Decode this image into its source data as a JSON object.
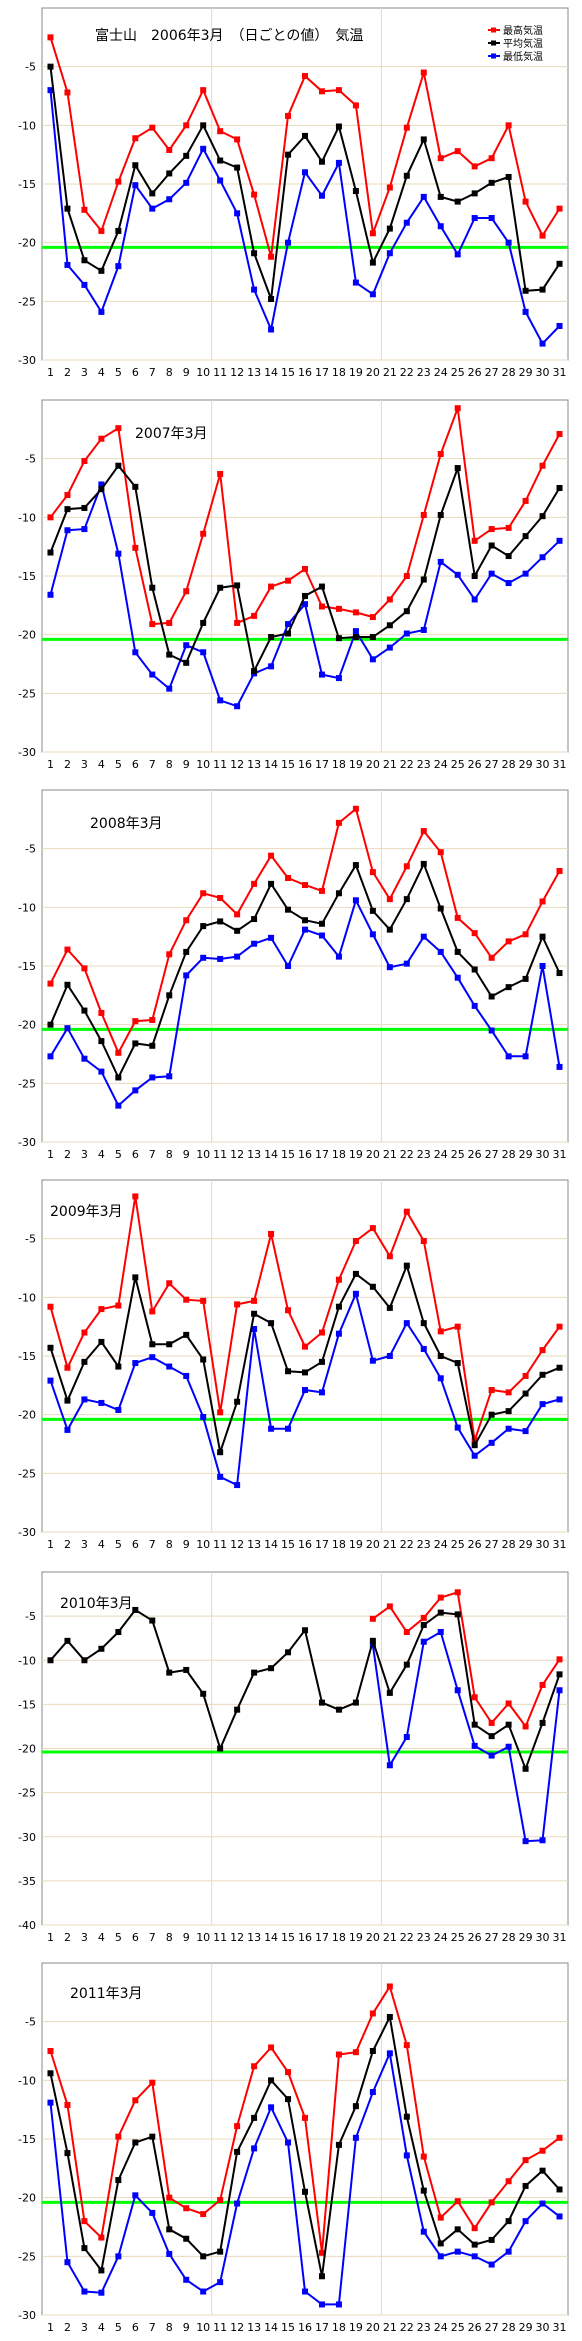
{
  "header": {
    "title": "富士山　2006年3月　（日ごとの値）　気温"
  },
  "legend": [
    {
      "label": "最高気温",
      "color": "#ff0000"
    },
    {
      "label": "平均気温",
      "color": "#000000"
    },
    {
      "label": "最低気温",
      "color": "#0000ff"
    }
  ],
  "colors": {
    "max": "#ff0000",
    "mean": "#000000",
    "min": "#0000ff",
    "reference_line": "#00ff00",
    "grid": "#e8d9bd",
    "background": "#ffffff"
  },
  "chart_data": [
    {
      "type": "line",
      "title": "富士山　2006年3月　（日ごとの値）　気温",
      "x": [
        1,
        2,
        3,
        4,
        5,
        6,
        7,
        8,
        9,
        10,
        11,
        12,
        13,
        14,
        15,
        16,
        17,
        18,
        19,
        20,
        21,
        22,
        23,
        24,
        25,
        26,
        27,
        28,
        29,
        30,
        31
      ],
      "ylim": [
        -30,
        0
      ],
      "yticks": [
        "-5",
        "-10",
        "-15",
        "-20",
        "-25",
        "-30"
      ],
      "reference_line": -20.4,
      "grid": true,
      "series": [
        {
          "name": "最高気温",
          "values": [
            -2.5,
            -7.2,
            -17.2,
            -19.0,
            -14.8,
            -11.1,
            -10.2,
            -12.1,
            -10.0,
            -7.0,
            -10.5,
            -11.2,
            -15.9,
            -21.2,
            -9.2,
            -5.8,
            -7.1,
            -7.0,
            -8.3,
            -19.2,
            -15.3,
            -10.2,
            -5.5,
            -12.8,
            -12.2,
            -13.5,
            -12.8,
            -10.0,
            -16.5,
            -19.4,
            -17.1
          ]
        },
        {
          "name": "平均気温",
          "values": [
            -5.0,
            -17.1,
            -21.5,
            -22.4,
            -19.0,
            -13.4,
            -15.8,
            -14.1,
            -12.6,
            -10.0,
            -13.0,
            -13.6,
            -20.9,
            -24.8,
            -12.5,
            -10.9,
            -13.1,
            -10.1,
            -15.6,
            -21.7,
            -18.8,
            -14.3,
            -11.2,
            -16.1,
            -16.5,
            -15.8,
            -14.9,
            -14.4,
            -24.1,
            -24.0,
            -21.8
          ]
        },
        {
          "name": "最低気温",
          "values": [
            -7.0,
            -21.9,
            -23.6,
            -25.9,
            -22.0,
            -15.1,
            -17.1,
            -16.3,
            -14.9,
            -12.0,
            -14.7,
            -17.5,
            -24.0,
            -27.4,
            -20.0,
            -14.0,
            -16.0,
            -13.2,
            -23.4,
            -24.4,
            -20.9,
            -18.3,
            -16.1,
            -18.6,
            -21.0,
            -17.9,
            -17.9,
            -20.0,
            -25.9,
            -28.6,
            -27.1
          ]
        }
      ]
    },
    {
      "type": "line",
      "title": "2007年3月",
      "x": [
        1,
        2,
        3,
        4,
        5,
        6,
        7,
        8,
        9,
        10,
        11,
        12,
        13,
        14,
        15,
        16,
        17,
        18,
        19,
        20,
        21,
        22,
        23,
        24,
        25,
        26,
        27,
        28,
        29,
        30,
        31
      ],
      "ylim": [
        -30,
        0
      ],
      "yticks": [
        "-5",
        "-10",
        "-15",
        "-20",
        "-25",
        "-30"
      ],
      "reference_line": -20.4,
      "grid": true,
      "series": [
        {
          "name": "最高気温",
          "values": [
            -10.0,
            -8.1,
            -5.2,
            -3.3,
            -2.4,
            -12.6,
            -19.1,
            -19.0,
            -16.3,
            -11.4,
            -6.3,
            -19.0,
            -18.4,
            -15.9,
            -15.4,
            -14.4,
            -17.6,
            -17.8,
            -18.1,
            -18.5,
            -17.0,
            -15.0,
            -9.8,
            -4.6,
            -0.7,
            -12.0,
            -11.0,
            -10.9,
            -8.6,
            -5.6,
            -2.9
          ]
        },
        {
          "name": "平均気温",
          "values": [
            -13.0,
            -9.3,
            -9.2,
            -7.6,
            -5.6,
            -7.4,
            -16.0,
            -21.7,
            -22.4,
            -19.0,
            -16.0,
            -15.8,
            -23.1,
            -20.2,
            -19.9,
            -16.7,
            -15.9,
            -20.3,
            -20.2,
            -20.2,
            -19.2,
            -18.0,
            -15.3,
            -9.8,
            -5.8,
            -15.0,
            -12.4,
            -13.3,
            -11.6,
            -9.9,
            -7.5
          ]
        },
        {
          "name": "最低気温",
          "values": [
            -16.6,
            -11.1,
            -11.0,
            -7.2,
            -13.1,
            -21.5,
            -23.4,
            -24.6,
            -20.9,
            -21.5,
            -25.6,
            -26.1,
            -23.3,
            -22.7,
            -19.1,
            -17.4,
            -23.4,
            -23.7,
            -19.7,
            -22.1,
            -21.1,
            -19.9,
            -19.6,
            -13.8,
            -14.9,
            -17.0,
            -14.8,
            -15.6,
            -14.8,
            -13.4,
            -12.0
          ]
        }
      ]
    },
    {
      "type": "line",
      "title": "2008年3月",
      "x": [
        1,
        2,
        3,
        4,
        5,
        6,
        7,
        8,
        9,
        10,
        11,
        12,
        13,
        14,
        15,
        16,
        17,
        18,
        19,
        20,
        21,
        22,
        23,
        24,
        25,
        26,
        27,
        28,
        29,
        30,
        31
      ],
      "ylim": [
        -30,
        0
      ],
      "yticks": [
        "-5",
        "-10",
        "-15",
        "-20",
        "-25",
        "-30"
      ],
      "reference_line": -20.4,
      "grid": true,
      "series": [
        {
          "name": "最高気温",
          "values": [
            -16.5,
            -13.6,
            -15.2,
            -19.0,
            -22.4,
            -19.7,
            -19.6,
            -14.0,
            -11.1,
            -8.8,
            -9.2,
            -10.6,
            -8.0,
            -5.6,
            -7.5,
            -8.1,
            -8.6,
            -2.8,
            -1.6,
            -7.0,
            -9.3,
            -6.5,
            -3.5,
            -5.3,
            -10.9,
            -12.2,
            -14.3,
            -12.9,
            -12.3,
            -9.5,
            -6.9
          ]
        },
        {
          "name": "平均気温",
          "values": [
            -20.0,
            -16.6,
            -18.8,
            -21.4,
            -24.5,
            -21.6,
            -21.8,
            -17.5,
            -13.8,
            -11.6,
            -11.2,
            -12.0,
            -11.0,
            -8.0,
            -10.2,
            -11.1,
            -11.4,
            -8.8,
            -6.4,
            -10.3,
            -11.9,
            -9.3,
            -6.3,
            -10.1,
            -13.8,
            -15.3,
            -17.6,
            -16.8,
            -16.1,
            -12.5,
            -15.6
          ]
        },
        {
          "name": "最低気温",
          "values": [
            -22.7,
            -20.3,
            -22.9,
            -24.0,
            -26.9,
            -25.6,
            -24.5,
            -24.4,
            -15.8,
            -14.3,
            -14.4,
            -14.2,
            -13.1,
            -12.6,
            -15.0,
            -11.9,
            -12.4,
            -14.2,
            -9.4,
            -12.3,
            -15.1,
            -14.8,
            -12.5,
            -13.8,
            -16.0,
            -18.4,
            -20.5,
            -22.7,
            -22.7,
            -15.0,
            -23.6
          ]
        }
      ]
    },
    {
      "type": "line",
      "title": "2009年3月",
      "x": [
        1,
        2,
        3,
        4,
        5,
        6,
        7,
        8,
        9,
        10,
        11,
        12,
        13,
        14,
        15,
        16,
        17,
        18,
        19,
        20,
        21,
        22,
        23,
        24,
        25,
        26,
        27,
        28,
        29,
        30,
        31
      ],
      "ylim": [
        -30,
        0
      ],
      "yticks": [
        "-5",
        "-10",
        "-15",
        "-20",
        "-25",
        "-30"
      ],
      "reference_line": -20.4,
      "grid": true,
      "series": [
        {
          "name": "最高気温",
          "values": [
            -10.8,
            -16.0,
            -13.0,
            -11.0,
            -10.7,
            -1.4,
            -11.2,
            -8.8,
            -10.2,
            -10.3,
            -19.8,
            -10.6,
            -10.3,
            -4.6,
            -11.1,
            -14.2,
            -13.0,
            -8.5,
            -5.2,
            -4.1,
            -6.5,
            -2.7,
            -5.2,
            -12.9,
            -12.5,
            -22.2,
            -17.9,
            -18.1,
            -16.7,
            -14.5,
            -12.5
          ]
        },
        {
          "name": "平均気温",
          "values": [
            -14.3,
            -18.8,
            -15.5,
            -13.8,
            -15.9,
            -8.3,
            -14.0,
            -14.0,
            -13.2,
            -15.3,
            -23.2,
            -18.9,
            -11.4,
            -12.2,
            -16.3,
            -16.4,
            -15.5,
            -10.8,
            -8.0,
            -9.1,
            -10.9,
            -7.3,
            -12.2,
            -15.0,
            -15.6,
            -22.6,
            -20.0,
            -19.7,
            -18.2,
            -16.6,
            -16.0
          ]
        },
        {
          "name": "最低気温",
          "values": [
            -17.1,
            -21.3,
            -18.7,
            -19.0,
            -19.6,
            -15.6,
            -15.1,
            -15.9,
            -16.7,
            -20.2,
            -25.3,
            -26.0,
            -12.7,
            -21.2,
            -21.2,
            -17.9,
            -18.1,
            -13.1,
            -9.7,
            -15.4,
            -15.0,
            -12.2,
            -14.4,
            -16.9,
            -21.1,
            -23.5,
            -22.4,
            -21.2,
            -21.4,
            -19.1,
            -18.7
          ]
        }
      ]
    },
    {
      "type": "line",
      "title": "2010年3月",
      "x": [
        1,
        2,
        3,
        4,
        5,
        6,
        7,
        8,
        9,
        10,
        11,
        12,
        13,
        14,
        15,
        16,
        17,
        18,
        19,
        20,
        21,
        22,
        23,
        24,
        25,
        26,
        27,
        28,
        29,
        30,
        31
      ],
      "ylim": [
        -40,
        0
      ],
      "yticks": [
        "-5",
        "-10",
        "-15",
        "-20",
        "-25",
        "-30",
        "-35",
        "-40"
      ],
      "reference_line": -20.4,
      "grid": true,
      "series": [
        {
          "name": "最高気温",
          "values": [
            null,
            null,
            null,
            null,
            null,
            null,
            null,
            null,
            null,
            null,
            null,
            null,
            null,
            null,
            null,
            null,
            null,
            null,
            null,
            -5.3,
            -3.9,
            -6.8,
            -5.2,
            -2.9,
            -2.3,
            -14.2,
            -17.1,
            -14.9,
            -17.5,
            -12.8,
            -9.9
          ]
        },
        {
          "name": "平均気温",
          "values": [
            -10.0,
            -7.8,
            -10.0,
            -8.7,
            -6.8,
            -4.3,
            -5.5,
            -11.4,
            -11.1,
            -13.8,
            -20.0,
            -15.6,
            -11.4,
            -10.9,
            -9.1,
            -6.6,
            -14.8,
            -15.6,
            -14.8,
            -7.8,
            -13.7,
            -10.5,
            -6.0,
            -4.6,
            -4.8,
            -17.3,
            -18.6,
            -17.3,
            -22.3,
            -17.1,
            -11.6
          ]
        },
        {
          "name": "最低気温",
          "values": [
            null,
            null,
            null,
            null,
            null,
            null,
            null,
            null,
            null,
            null,
            null,
            null,
            null,
            null,
            null,
            null,
            null,
            null,
            null,
            -8.3,
            -21.9,
            -18.7,
            -7.9,
            -6.8,
            -13.4,
            -19.7,
            -20.8,
            -19.8,
            -30.5,
            -30.4,
            -13.4
          ]
        }
      ]
    },
    {
      "type": "line",
      "title": "2011年3月",
      "x": [
        1,
        2,
        3,
        4,
        5,
        6,
        7,
        8,
        9,
        10,
        11,
        12,
        13,
        14,
        15,
        16,
        17,
        18,
        19,
        20,
        21,
        22,
        23,
        24,
        25,
        26,
        27,
        28,
        29,
        30,
        31
      ],
      "ylim": [
        -30,
        0
      ],
      "yticks": [
        "-5",
        "-10",
        "-15",
        "-20",
        "-25",
        "-30"
      ],
      "reference_line": -20.4,
      "grid": true,
      "series": [
        {
          "name": "最高気温",
          "values": [
            -7.5,
            -12.1,
            -22.0,
            -23.4,
            -14.8,
            -11.7,
            -10.2,
            -20.0,
            -20.9,
            -21.4,
            -20.2,
            -13.9,
            -8.8,
            -7.2,
            -9.3,
            -13.2,
            -24.7,
            -7.8,
            -7.6,
            -4.3,
            -2.0,
            -7.0,
            -16.5,
            -21.7,
            -20.3,
            -22.6,
            -20.4,
            -18.6,
            -16.8,
            -16.0,
            -14.9
          ]
        },
        {
          "name": "平均気温",
          "values": [
            -9.4,
            -16.2,
            -24.3,
            -26.2,
            -18.5,
            -15.3,
            -14.8,
            -22.7,
            -23.5,
            -25.0,
            -24.6,
            -16.1,
            -13.2,
            -10.0,
            -11.6,
            -19.5,
            -26.7,
            -15.5,
            -12.2,
            -7.5,
            -4.6,
            -13.1,
            -19.4,
            -23.9,
            -22.7,
            -24.0,
            -23.6,
            -22.0,
            -19.0,
            -17.7,
            -19.3
          ]
        },
        {
          "name": "最低気温",
          "values": [
            -11.9,
            -25.5,
            -28.0,
            -28.1,
            -25.0,
            -19.8,
            -21.3,
            -24.8,
            -27.0,
            -28.0,
            -27.2,
            -20.5,
            -15.8,
            -12.3,
            -15.3,
            -28.0,
            -29.1,
            -29.1,
            -14.9,
            -11.0,
            -7.7,
            -16.4,
            -22.9,
            -25.0,
            -24.6,
            -25.0,
            -25.7,
            -24.6,
            -22.0,
            -20.5,
            -21.6
          ]
        }
      ]
    }
  ]
}
